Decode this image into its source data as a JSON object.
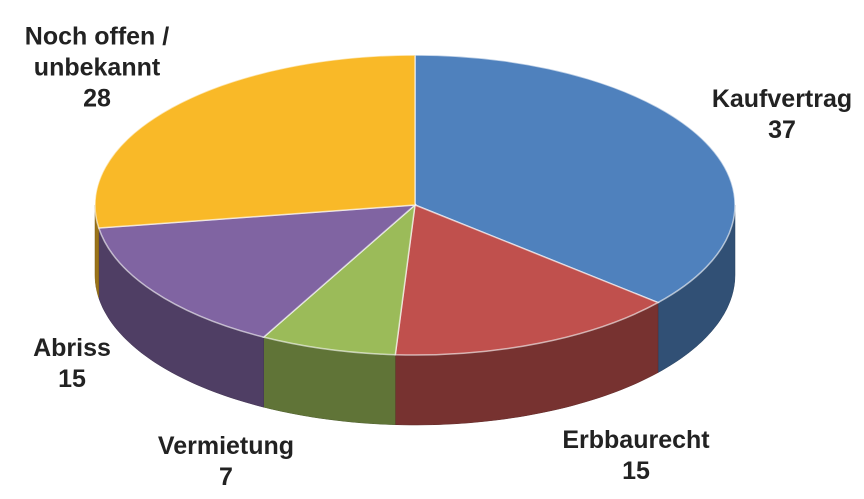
{
  "chart_data": {
    "type": "pie3d",
    "categories": [
      "Kaufvertrag",
      "Erbbaurecht",
      "Vermietung",
      "Abriss",
      "Noch offen / unbekannt"
    ],
    "values": [
      37,
      15,
      7,
      15,
      28
    ],
    "colors": [
      "#4f81bd",
      "#c0504d",
      "#9bbb59",
      "#8064a2",
      "#f9b928"
    ]
  }
}
